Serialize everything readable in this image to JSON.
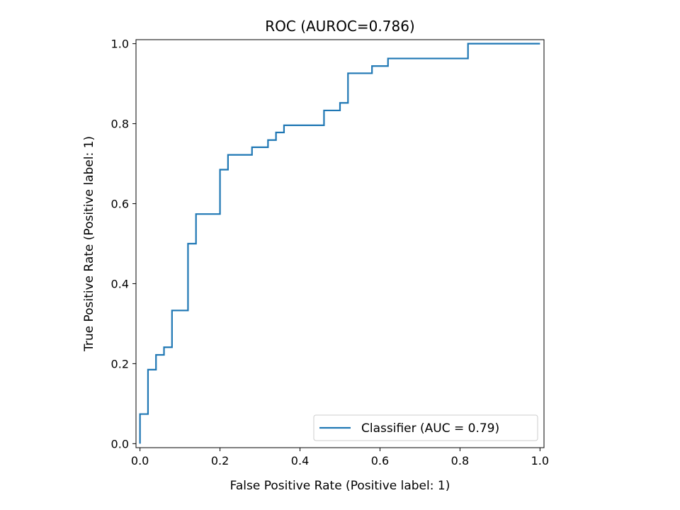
{
  "chart_data": {
    "type": "line",
    "title": "ROC (AUROC=0.786)",
    "xlabel": "False Positive Rate (Positive label: 1)",
    "ylabel": "True Positive Rate (Positive label: 1)",
    "xlim": [
      -0.01,
      1.01
    ],
    "ylim": [
      -0.01,
      1.01
    ],
    "xticks": [
      0.0,
      0.2,
      0.4,
      0.6,
      0.8,
      1.0
    ],
    "xtick_labels": [
      "0.0",
      "0.2",
      "0.4",
      "0.6",
      "0.8",
      "1.0"
    ],
    "yticks": [
      0.0,
      0.2,
      0.4,
      0.6,
      0.8,
      1.0
    ],
    "ytick_labels": [
      "0.0",
      "0.2",
      "0.4",
      "0.6",
      "0.8",
      "1.0"
    ],
    "grid": false,
    "legend_position": "lower-right",
    "series": [
      {
        "name": "Classifier (AUC = 0.79)",
        "color": "#1f77b4",
        "x": [
          0.0,
          0.0,
          0.02,
          0.02,
          0.04,
          0.04,
          0.06,
          0.06,
          0.08,
          0.08,
          0.12,
          0.12,
          0.14,
          0.14,
          0.2,
          0.2,
          0.22,
          0.22,
          0.28,
          0.28,
          0.32,
          0.32,
          0.34,
          0.34,
          0.36,
          0.36,
          0.46,
          0.46,
          0.5,
          0.5,
          0.52,
          0.52,
          0.58,
          0.58,
          0.62,
          0.62,
          0.82,
          0.82,
          1.0
        ],
        "y": [
          0.0,
          0.074,
          0.074,
          0.185,
          0.185,
          0.222,
          0.222,
          0.241,
          0.241,
          0.333,
          0.333,
          0.5,
          0.5,
          0.574,
          0.574,
          0.685,
          0.685,
          0.722,
          0.722,
          0.741,
          0.741,
          0.759,
          0.759,
          0.778,
          0.778,
          0.796,
          0.796,
          0.833,
          0.833,
          0.852,
          0.852,
          0.926,
          0.926,
          0.944,
          0.944,
          0.963,
          0.963,
          1.0,
          1.0
        ]
      }
    ]
  }
}
